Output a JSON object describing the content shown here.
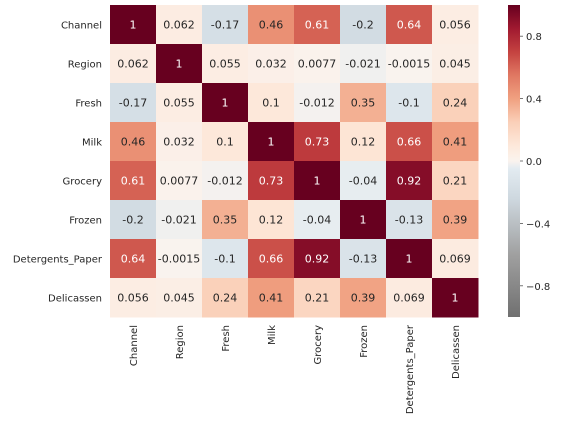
{
  "chart_data": {
    "type": "heatmap",
    "rows": [
      "Channel",
      "Region",
      "Fresh",
      "Milk",
      "Grocery",
      "Frozen",
      "Detergents_Paper",
      "Delicassen"
    ],
    "columns": [
      "Channel",
      "Region",
      "Fresh",
      "Milk",
      "Grocery",
      "Frozen",
      "Detergents_Paper",
      "Delicassen"
    ],
    "values": [
      [
        1,
        0.062,
        -0.17,
        0.46,
        0.61,
        -0.2,
        0.64,
        0.056
      ],
      [
        0.062,
        1,
        0.055,
        0.032,
        0.0077,
        -0.021,
        -0.0015,
        0.045
      ],
      [
        -0.17,
        0.055,
        1,
        0.1,
        -0.012,
        0.35,
        -0.1,
        0.24
      ],
      [
        0.46,
        0.032,
        0.1,
        1,
        0.73,
        0.12,
        0.66,
        0.41
      ],
      [
        0.61,
        0.0077,
        -0.012,
        0.73,
        1,
        -0.04,
        0.92,
        0.21
      ],
      [
        -0.2,
        -0.021,
        0.35,
        0.12,
        -0.04,
        1,
        -0.13,
        0.39
      ],
      [
        0.64,
        -0.0015,
        -0.1,
        0.66,
        0.92,
        -0.13,
        1,
        0.069
      ],
      [
        0.056,
        0.045,
        0.24,
        0.41,
        0.21,
        0.39,
        0.069,
        1
      ]
    ],
    "cell_labels": [
      [
        "1",
        "0.062",
        "-0.17",
        "0.46",
        "0.61",
        "-0.2",
        "0.64",
        "0.056"
      ],
      [
        "0.062",
        "1",
        "0.055",
        "0.032",
        "0.0077",
        "-0.021",
        "-0.0015",
        "0.045"
      ],
      [
        "-0.17",
        "0.055",
        "1",
        "0.1",
        "-0.012",
        "0.35",
        "-0.1",
        "0.24"
      ],
      [
        "0.46",
        "0.032",
        "0.1",
        "1",
        "0.73",
        "0.12",
        "0.66",
        "0.41"
      ],
      [
        "0.61",
        "0.0077",
        "-0.012",
        "0.73",
        "1",
        "-0.04",
        "0.92",
        "0.21"
      ],
      [
        "-0.2",
        "-0.021",
        "0.35",
        "0.12",
        "-0.04",
        "1",
        "-0.13",
        "0.39"
      ],
      [
        "0.64",
        "-0.0015",
        "-0.1",
        "0.66",
        "0.92",
        "-0.13",
        "1",
        "0.069"
      ],
      [
        "0.056",
        "0.045",
        "0.24",
        "0.41",
        "0.21",
        "0.39",
        "0.069",
        "1"
      ]
    ],
    "colorbar": {
      "range": [
        -1,
        1
      ],
      "ticks": [
        0.8,
        0.4,
        0.0,
        -0.4,
        -0.8
      ],
      "tick_labels": [
        "0.8",
        "0.4",
        "0.0",
        "−0.4",
        "−0.8"
      ],
      "colormap": "RdGy_r (gray for negative, red for positive)"
    },
    "title": "",
    "xlabel": "",
    "ylabel": ""
  },
  "colors": {
    "max_positive": "#67001f",
    "strong_positive": "#b2182b",
    "mid_positive": "#e08c72",
    "light_positive": "#fddbc7",
    "neutral": "#fcf5f1",
    "light_negative": "#d9e6ee",
    "mid_negative": "#a9a9a9",
    "max_negative": "#707070"
  }
}
